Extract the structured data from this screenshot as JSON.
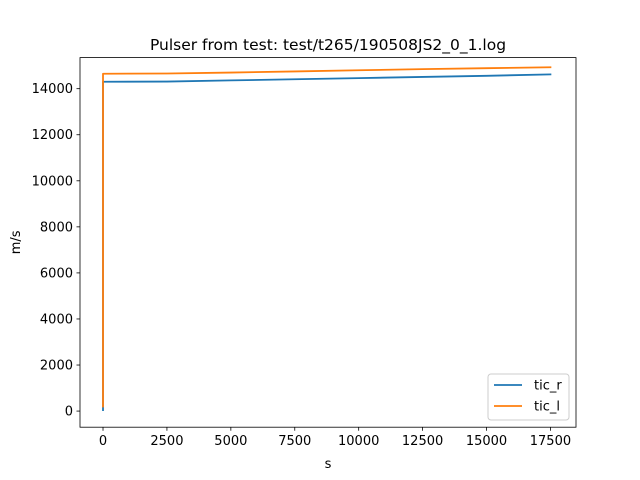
{
  "chart_data": {
    "type": "line",
    "title": "Pulser from test: test/t265/190508JS2_0_1.log",
    "xlabel": "s",
    "ylabel": "m/s",
    "xlim": [
      -900,
      18500
    ],
    "ylim": [
      -700,
      15350
    ],
    "xticks": [
      0,
      2500,
      5000,
      7500,
      10000,
      12500,
      15000,
      17500
    ],
    "yticks": [
      0,
      2000,
      4000,
      6000,
      8000,
      10000,
      12000,
      14000
    ],
    "grid": false,
    "legend_position": "lower right",
    "series": [
      {
        "name": "tic_r",
        "color": "#1f77b4",
        "x": [
          0,
          0,
          5,
          2500,
          5000,
          7500,
          10000,
          12500,
          15000,
          17500
        ],
        "y": [
          40,
          14300,
          14300,
          14310,
          14360,
          14410,
          14460,
          14510,
          14560,
          14620
        ]
      },
      {
        "name": "tic_l",
        "color": "#ff7f0e",
        "x": [
          0,
          0,
          5,
          2500,
          5000,
          7500,
          10000,
          12500,
          15000,
          17500
        ],
        "y": [
          200,
          14650,
          14650,
          14660,
          14700,
          14750,
          14800,
          14850,
          14890,
          14930
        ]
      }
    ]
  }
}
